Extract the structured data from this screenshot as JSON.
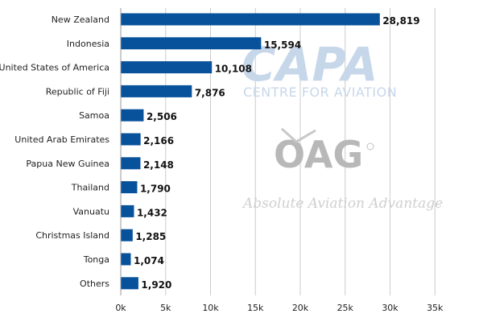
{
  "chart_data": {
    "type": "bar",
    "orientation": "horizontal",
    "title": "",
    "xlabel": "",
    "ylabel": "",
    "xlim": [
      0,
      35000
    ],
    "x_ticks": [
      0,
      5000,
      10000,
      15000,
      20000,
      25000,
      30000,
      35000
    ],
    "x_tick_labels": [
      "0k",
      "5k",
      "10k",
      "15k",
      "20k",
      "25k",
      "30k",
      "35k"
    ],
    "grid": "vertical",
    "bar_color": "#08529b",
    "categories": [
      "New Zealand",
      "Indonesia",
      "United States of America",
      "Republic of Fiji",
      "Samoa",
      "United Arab Emirates",
      "Papua New Guinea",
      "Thailand",
      "Vanuatu",
      "Christmas Island",
      "Tonga",
      "Others"
    ],
    "values": [
      28819,
      15594,
      10108,
      7876,
      2506,
      2166,
      2148,
      1790,
      1432,
      1285,
      1074,
      1920
    ],
    "value_labels": [
      "28,819",
      "15,594",
      "10,108",
      "7,876",
      "2,506",
      "2,166",
      "2,148",
      "1,790",
      "1,432",
      "1,285",
      "1,074",
      "1,920"
    ]
  },
  "watermarks": {
    "capa_logo": "CAPA",
    "capa_tagline": "CENTRE FOR AVIATION",
    "oag_logo": "OAG",
    "oag_tagline": "Absolute Aviation Advantage"
  }
}
